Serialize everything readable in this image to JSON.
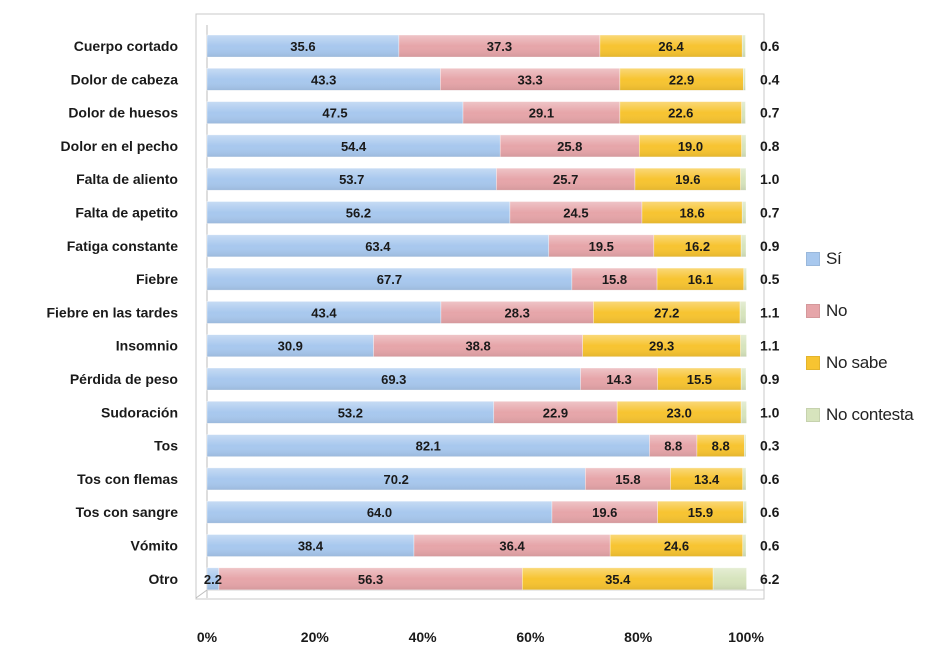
{
  "chart_data": {
    "type": "bar",
    "orientation": "horizontal",
    "stacked": "100%",
    "categories": [
      "Cuerpo cortado",
      "Dolor de cabeza",
      "Dolor de huesos",
      "Dolor en el pecho",
      "Falta de aliento",
      "Falta de apetito",
      "Fatiga constante",
      "Fiebre",
      "Fiebre en las tardes",
      "Insomnio",
      "Pérdida de peso",
      "Sudoración",
      "Tos",
      "Tos con flemas",
      "Tos con sangre",
      "Vómito",
      "Otro"
    ],
    "series": [
      {
        "name": "Sí",
        "color": "#a8c8ee",
        "values": [
          35.6,
          43.3,
          47.5,
          54.4,
          53.7,
          56.2,
          63.4,
          67.7,
          43.4,
          30.9,
          69.3,
          53.2,
          82.1,
          70.2,
          64.0,
          38.4,
          2.2
        ],
        "labels": [
          "35.6",
          "43.3",
          "47.5",
          "54.4",
          "53.7",
          "56.2",
          "63.4",
          "67.7",
          "43.4",
          "30.9",
          "69.3",
          "53.2",
          "82.1",
          "70.2",
          "64.0",
          "38.4",
          "2.2"
        ]
      },
      {
        "name": "No",
        "color": "#e6a5a9",
        "values": [
          37.3,
          33.3,
          29.1,
          25.8,
          25.7,
          24.5,
          19.5,
          15.8,
          28.3,
          38.8,
          14.3,
          22.9,
          8.8,
          15.8,
          19.6,
          36.4,
          56.3
        ],
        "labels": [
          "37.3",
          "33.3",
          "29.1",
          "25.8",
          "25.7",
          "24.5",
          "19.5",
          "15.8",
          "28.3",
          "38.8",
          "14.3",
          "22.9",
          "8.8",
          "15.8",
          "19.6",
          "36.4",
          "56.3"
        ]
      },
      {
        "name": "No sabe",
        "color": "#f7c431",
        "values": [
          26.4,
          22.9,
          22.6,
          19.0,
          19.6,
          18.6,
          16.2,
          16.1,
          27.2,
          29.3,
          15.5,
          23.0,
          8.8,
          13.4,
          15.9,
          24.6,
          35.4
        ],
        "labels": [
          "26.4",
          "22.9",
          "22.6",
          "19.0",
          "19.6",
          "18.6",
          "16.2",
          "16.1",
          "27.2",
          "29.3",
          "15.5",
          "23.0",
          "8.8",
          "13.4",
          "15.9",
          "24.6",
          "35.4"
        ]
      },
      {
        "name": "No contesta",
        "color": "#d7e4bd",
        "values": [
          0.6,
          0.4,
          0.7,
          0.8,
          1.0,
          0.7,
          0.9,
          0.5,
          1.1,
          1.1,
          0.9,
          1.0,
          0.3,
          0.6,
          0.6,
          0.6,
          6.2
        ],
        "labels": [
          "0.6",
          "0.4",
          "0.7",
          "0.8",
          "1.0",
          "0.7",
          "0.9",
          "0.5",
          "1.1",
          "1.1",
          "0.9",
          "1.0",
          "0.3",
          "0.6",
          "0.6",
          "0.6",
          "6.2"
        ]
      }
    ],
    "x_ticks": [
      "0%",
      "20%",
      "40%",
      "60%",
      "80%",
      "100%"
    ],
    "xlim": [
      0,
      100
    ],
    "legend_position": "right",
    "grid": false
  }
}
